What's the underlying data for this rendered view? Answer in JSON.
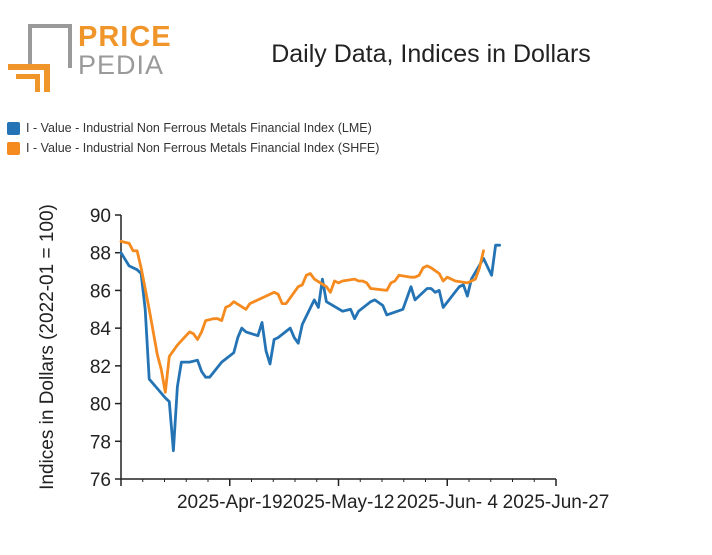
{
  "logo": {
    "price": "PRICE",
    "pedia": "PEDIA"
  },
  "colors": {
    "lme": "#2474b5",
    "shfe": "#f58a1f",
    "logo_orange": "#f0952a",
    "logo_gray": "#9a9a9a"
  },
  "chart_data": {
    "type": "line",
    "title": "Daily Data, Indices in Dollars",
    "xlabel": "",
    "ylabel": "Indices in Dollars (2022-01 = 100)",
    "ylim": [
      76,
      90
    ],
    "yticks": [
      76,
      78,
      80,
      82,
      84,
      86,
      88,
      90
    ],
    "xlim": [
      0,
      108
    ],
    "xticks": [
      {
        "x": 0,
        "label": ""
      },
      {
        "x": 27,
        "label": "2025-Apr-19"
      },
      {
        "x": 54,
        "label": "2025-May-12"
      },
      {
        "x": 81,
        "label": "2025-Jun- 4"
      },
      {
        "x": 108,
        "label": "2025-Jun-27"
      }
    ],
    "grid": false,
    "legend_position": "top-left",
    "series": [
      {
        "name": "I - Value - Industrial Non Ferrous Metals Financial Index (LME)",
        "color": "#2474b5",
        "points": [
          [
            0,
            88.0
          ],
          [
            2,
            87.3
          ],
          [
            4,
            87.1
          ],
          [
            5,
            86.9
          ],
          [
            6,
            85.0
          ],
          [
            7,
            81.3
          ],
          [
            9,
            80.8
          ],
          [
            11,
            80.3
          ],
          [
            12,
            80.1
          ],
          [
            13,
            77.5
          ],
          [
            14,
            80.9
          ],
          [
            15,
            82.2
          ],
          [
            17,
            82.2
          ],
          [
            19,
            82.3
          ],
          [
            20,
            81.7
          ],
          [
            21,
            81.4
          ],
          [
            22,
            81.4
          ],
          [
            25,
            82.2
          ],
          [
            28,
            82.7
          ],
          [
            29,
            83.5
          ],
          [
            30,
            84.0
          ],
          [
            31,
            83.8
          ],
          [
            34,
            83.6
          ],
          [
            35,
            84.3
          ],
          [
            36,
            82.8
          ],
          [
            37,
            82.1
          ],
          [
            38,
            83.4
          ],
          [
            39,
            83.5
          ],
          [
            42,
            84.0
          ],
          [
            43,
            83.5
          ],
          [
            44,
            83.2
          ],
          [
            45,
            84.2
          ],
          [
            48,
            85.5
          ],
          [
            49,
            85.1
          ],
          [
            50,
            86.6
          ],
          [
            51,
            85.4
          ],
          [
            55,
            84.9
          ],
          [
            57,
            85.0
          ],
          [
            58,
            84.5
          ],
          [
            59,
            84.9
          ],
          [
            62,
            85.4
          ],
          [
            63,
            85.5
          ],
          [
            65,
            85.2
          ],
          [
            66,
            84.7
          ],
          [
            70,
            85.0
          ],
          [
            72,
            86.2
          ],
          [
            73,
            85.5
          ],
          [
            76,
            86.1
          ],
          [
            77,
            86.1
          ],
          [
            78,
            85.9
          ],
          [
            79,
            86.0
          ],
          [
            80,
            85.1
          ],
          [
            84,
            86.2
          ],
          [
            85,
            86.3
          ],
          [
            86,
            85.7
          ],
          [
            87,
            86.6
          ],
          [
            90,
            87.7
          ],
          [
            92,
            86.8
          ],
          [
            93,
            88.4
          ],
          [
            94,
            88.4
          ]
        ]
      },
      {
        "name": "I - Value - Industrial Non Ferrous Metals Financial Index (SHFE)",
        "color": "#f58a1f",
        "points": [
          [
            0,
            88.6
          ],
          [
            2,
            88.5
          ],
          [
            3,
            88.1
          ],
          [
            4,
            88.1
          ],
          [
            5,
            87.2
          ],
          [
            7,
            85.0
          ],
          [
            9,
            82.6
          ],
          [
            10,
            81.8
          ],
          [
            11,
            80.6
          ],
          [
            12,
            82.5
          ],
          [
            14,
            83.1
          ],
          [
            17,
            83.8
          ],
          [
            18,
            83.7
          ],
          [
            19,
            83.4
          ],
          [
            20,
            83.8
          ],
          [
            21,
            84.4
          ],
          [
            23,
            84.5
          ],
          [
            24,
            84.5
          ],
          [
            25,
            84.4
          ],
          [
            26,
            85.1
          ],
          [
            27,
            85.2
          ],
          [
            28,
            85.4
          ],
          [
            31,
            85.0
          ],
          [
            32,
            85.3
          ],
          [
            36,
            85.7
          ],
          [
            38,
            85.9
          ],
          [
            39,
            85.8
          ],
          [
            40,
            85.3
          ],
          [
            41,
            85.3
          ],
          [
            44,
            86.2
          ],
          [
            45,
            86.3
          ],
          [
            46,
            86.8
          ],
          [
            47,
            86.9
          ],
          [
            48,
            86.6
          ],
          [
            51,
            86.2
          ],
          [
            52,
            85.9
          ],
          [
            53,
            86.5
          ],
          [
            54,
            86.4
          ],
          [
            55,
            86.5
          ],
          [
            58,
            86.6
          ],
          [
            59,
            86.5
          ],
          [
            60,
            86.5
          ],
          [
            61,
            86.4
          ],
          [
            62,
            86.1
          ],
          [
            66,
            86.0
          ],
          [
            67,
            86.4
          ],
          [
            68,
            86.5
          ],
          [
            69,
            86.8
          ],
          [
            72,
            86.7
          ],
          [
            73,
            86.7
          ],
          [
            74,
            86.8
          ],
          [
            75,
            87.2
          ],
          [
            76,
            87.3
          ],
          [
            77,
            87.2
          ],
          [
            79,
            86.9
          ],
          [
            80,
            86.5
          ],
          [
            81,
            86.7
          ],
          [
            82,
            86.6
          ],
          [
            83,
            86.5
          ],
          [
            86,
            86.4
          ],
          [
            88,
            86.6
          ],
          [
            89,
            87.2
          ],
          [
            90,
            88.1
          ]
        ]
      }
    ]
  }
}
